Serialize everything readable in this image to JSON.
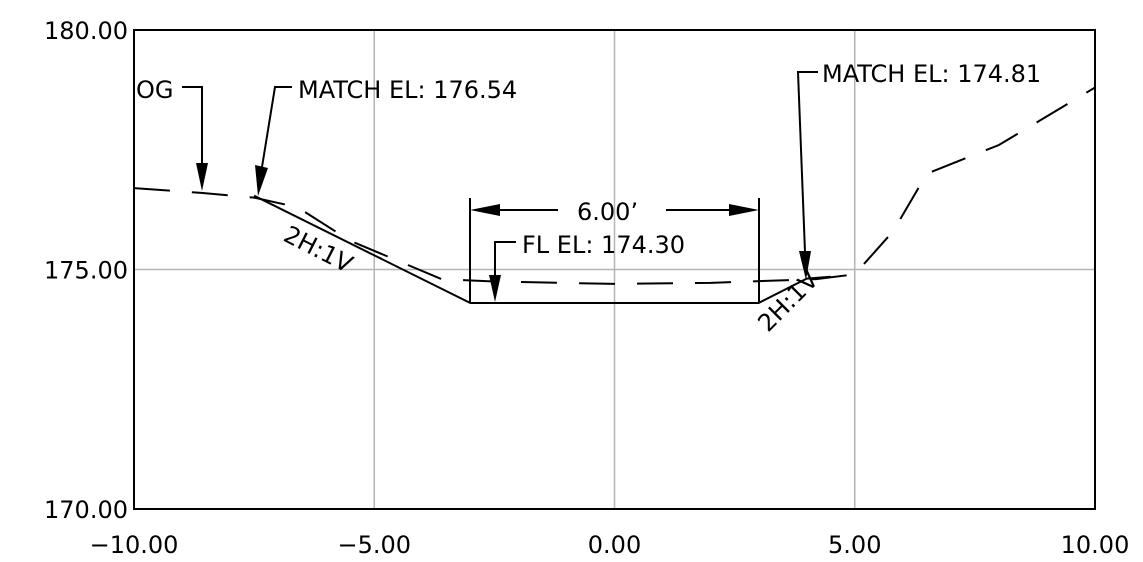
{
  "chart_data": {
    "type": "line",
    "title": "",
    "xlabel": "",
    "ylabel": "",
    "xlim": [
      -10,
      10
    ],
    "ylim": [
      170,
      180
    ],
    "grid": true,
    "x_ticks": [
      {
        "value": -10,
        "label": "−10.00"
      },
      {
        "value": -5,
        "label": "−5.00"
      },
      {
        "value": 0,
        "label": "0.00"
      },
      {
        "value": 5,
        "label": "5.00"
      },
      {
        "value": 10,
        "label": "10.00"
      }
    ],
    "y_ticks": [
      {
        "value": 170,
        "label": "170.00"
      },
      {
        "value": 175,
        "label": "175.00"
      },
      {
        "value": 180,
        "label": "180.00"
      }
    ],
    "series": [
      {
        "style": "dashed",
        "points": [
          [
            -10,
            176.7
          ],
          [
            -8.6,
            176.6
          ],
          [
            -7.5,
            176.5
          ],
          [
            -6.6,
            176.3
          ],
          [
            -5.5,
            175.6
          ],
          [
            -3.6,
            174.8
          ],
          [
            -2.5,
            174.75
          ],
          [
            0,
            174.7
          ],
          [
            2,
            174.72
          ],
          [
            4.2,
            174.8
          ],
          [
            5,
            174.9
          ],
          [
            5.8,
            175.8
          ],
          [
            6.5,
            177
          ],
          [
            8,
            177.6
          ],
          [
            10,
            178.8
          ]
        ]
      },
      {
        "style": "solid",
        "points": [
          [
            -7.5,
            176.54
          ],
          [
            -3,
            174.3
          ],
          [
            3,
            174.3
          ],
          [
            4,
            174.81
          ],
          [
            4.5,
            174.85
          ]
        ]
      }
    ],
    "annotations": {
      "og_label": "OG",
      "match_left": "MATCH EL: 176.54",
      "match_right": "MATCH EL: 174.81",
      "width_label": "6.00’",
      "flowline": "FL EL: 174.30",
      "slope_left": "2H:1V",
      "slope_right": "2H:1V"
    }
  }
}
